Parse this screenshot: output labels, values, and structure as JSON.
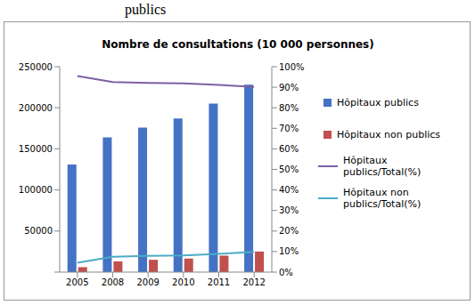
{
  "chart_data": {
    "type": "bar",
    "caption": "publics",
    "title": "Nombre de consultations (10 000 personnes)",
    "categories": [
      "2005",
      "2008",
      "2009",
      "2010",
      "2011",
      "2012"
    ],
    "series": [
      {
        "name": "Hôpitaux publics",
        "type": "bar",
        "color": "#4472c4",
        "values": [
          131000,
          164000,
          176000,
          187000,
          205000,
          228000
        ]
      },
      {
        "name": "Hôpitaux non publics",
        "type": "bar",
        "color": "#c0504d",
        "values": [
          6000,
          13000,
          15000,
          16500,
          20000,
          25000
        ]
      },
      {
        "name": "Hôpitaux publics/Total(%)",
        "type": "line",
        "axis": "y2",
        "color": "#7e5fa4",
        "values": [
          95.5,
          92.5,
          92.1,
          91.9,
          91.1,
          90.2
        ]
      },
      {
        "name": "Hôpitaux non publics/Total(%)",
        "type": "line",
        "axis": "y2",
        "color": "#4bacc6",
        "values": [
          4.5,
          7.5,
          7.9,
          8.1,
          8.9,
          9.8
        ]
      }
    ],
    "ylim": [
      0,
      250000
    ],
    "yticks": [
      0,
      50000,
      100000,
      150000,
      200000,
      250000
    ],
    "y2lim": [
      0,
      100
    ],
    "y2ticks": [
      {
        "value": 0,
        "label": "0%"
      },
      {
        "value": 10,
        "label": "10%"
      },
      {
        "value": 20,
        "label": "20%"
      },
      {
        "value": 30,
        "label": "30%"
      },
      {
        "value": 40,
        "label": "40%"
      },
      {
        "value": 50,
        "label": "50%"
      },
      {
        "value": 60,
        "label": "60%"
      },
      {
        "value": 70,
        "label": "70%"
      },
      {
        "value": 80,
        "label": "80%"
      },
      {
        "value": 90,
        "label": "90%"
      },
      {
        "value": 100,
        "label": "100%"
      }
    ],
    "grid": false,
    "legend": "right"
  }
}
